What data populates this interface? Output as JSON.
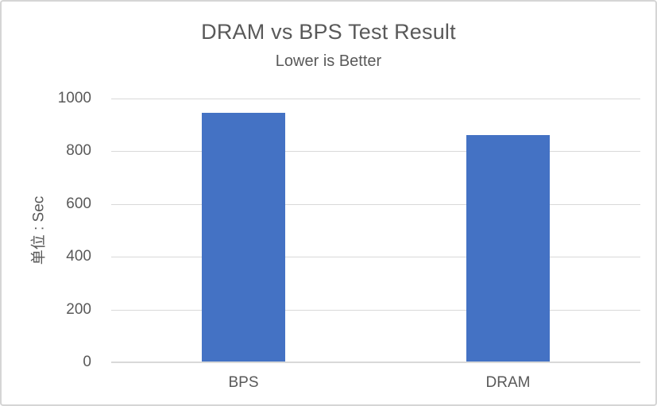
{
  "window": {
    "background_color": "#ffffff",
    "border_color": "#d5d5d5"
  },
  "chart_data": {
    "type": "bar",
    "title": "DRAM vs BPS Test Result",
    "subtitle": "Lower is Better",
    "ylabel": "单位 : Sec",
    "xlabel": "",
    "categories": [
      "BPS",
      "DRAM"
    ],
    "values": [
      945,
      862
    ],
    "ylim": [
      0,
      1000
    ],
    "yticks": [
      0,
      200,
      400,
      600,
      800,
      1000
    ],
    "grid": true,
    "legend_position": "none",
    "colors": {
      "bar": "#4472c4",
      "gridline": "#d9d9d9",
      "axis_line": "#d9d9d9",
      "text": "#595959"
    }
  }
}
